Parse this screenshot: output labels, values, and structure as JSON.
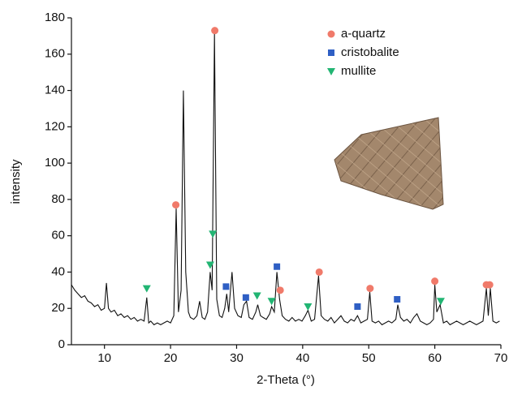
{
  "chart_data": {
    "type": "line",
    "x_label": "2-Theta (°)",
    "y_label": "intensity",
    "xlim": [
      5,
      70
    ],
    "xticks": [
      10,
      20,
      30,
      40,
      50,
      60,
      70
    ],
    "ylim": [
      0,
      180
    ],
    "yticks": [
      0,
      20,
      40,
      60,
      80,
      100,
      120,
      140,
      160,
      180
    ],
    "legend": "upper right",
    "series": [
      {
        "color": "#111111",
        "x": [
          5,
          5.5,
          6,
          6.5,
          7,
          7.5,
          8,
          8.5,
          9,
          9.5,
          10,
          10.3,
          10.6,
          11,
          11.5,
          12,
          12.5,
          13,
          13.5,
          14,
          14.5,
          15,
          15.5,
          16,
          16.4,
          16.7,
          17,
          17.5,
          18,
          18.5,
          19,
          19.5,
          20,
          20.5,
          20.85,
          21.2,
          21.6,
          21.95,
          22.3,
          22.7,
          23,
          23.5,
          24,
          24.4,
          24.8,
          25.2,
          25.6,
          26,
          26.3,
          26.65,
          27,
          27.4,
          27.8,
          28.2,
          28.5,
          28.8,
          29.3,
          29.7,
          30.2,
          30.7,
          31.1,
          31.5,
          31.9,
          32.4,
          32.9,
          33.2,
          33.6,
          34,
          34.5,
          35,
          35.3,
          35.7,
          36.1,
          36.5,
          36.9,
          37.4,
          37.9,
          38.4,
          38.9,
          39.4,
          39.9,
          40.4,
          40.8,
          41.3,
          41.8,
          42.4,
          42.8,
          43.3,
          43.8,
          44.3,
          44.8,
          45.3,
          45.8,
          46.3,
          46.8,
          47.3,
          47.8,
          48.3,
          48.8,
          49.3,
          49.8,
          50.15,
          50.5,
          51,
          51.5,
          52,
          52.5,
          53,
          53.5,
          54.1,
          54.4,
          54.8,
          55.3,
          55.8,
          56.3,
          56.8,
          57.3,
          57.8,
          58.3,
          58.8,
          59.3,
          59.8,
          60,
          60.3,
          60.8,
          61.3,
          61.8,
          62.3,
          62.8,
          63.3,
          63.8,
          64.3,
          64.8,
          65.3,
          65.8,
          66.3,
          66.8,
          67.3,
          67.8,
          68.1,
          68.4,
          68.8,
          69.3,
          69.8
        ],
        "values": [
          33,
          30,
          28,
          26,
          27,
          24,
          23,
          21,
          22,
          19,
          20,
          34,
          20,
          18,
          19,
          16,
          17,
          15,
          16,
          14,
          15,
          13,
          14,
          13,
          26,
          12,
          13,
          11,
          12,
          11,
          12,
          13,
          12,
          16,
          75,
          18,
          30,
          140,
          40,
          18,
          15,
          14,
          16,
          24,
          15,
          14,
          18,
          40,
          30,
          172,
          25,
          16,
          15,
          20,
          28,
          18,
          40,
          20,
          16,
          15,
          22,
          24,
          15,
          14,
          18,
          22,
          16,
          15,
          14,
          17,
          21,
          18,
          40,
          25,
          16,
          14,
          13,
          15,
          13,
          14,
          13,
          16,
          19,
          13,
          14,
          38,
          16,
          14,
          13,
          15,
          12,
          14,
          16,
          13,
          12,
          14,
          13,
          16,
          12,
          13,
          14,
          29,
          13,
          12,
          13,
          11,
          12,
          13,
          12,
          14,
          22,
          15,
          13,
          14,
          12,
          15,
          17,
          13,
          12,
          11,
          12,
          14,
          33,
          18,
          22,
          12,
          13,
          11,
          12,
          13,
          12,
          11,
          12,
          13,
          12,
          11,
          12,
          13,
          31,
          16,
          31,
          13,
          12,
          13
        ]
      },
      {
        "type": "scatter",
        "name": "a-quartz",
        "color": "#f07a6a",
        "marker": "circle",
        "x": [
          20.8,
          26.7,
          36.6,
          42.5,
          50.2,
          60.0,
          67.8,
          68.3
        ],
        "values": [
          77,
          173,
          30,
          40,
          31,
          35,
          33,
          33
        ]
      },
      {
        "type": "scatter",
        "name": "cristobalite",
        "color": "#2f5fc4",
        "marker": "square",
        "x": [
          28.4,
          31.4,
          36.1,
          48.3,
          54.3
        ],
        "values": [
          32,
          26,
          43,
          21,
          25
        ]
      },
      {
        "type": "scatter",
        "name": "mullite",
        "color": "#22b573",
        "marker": "triangle",
        "x": [
          16.4,
          26.0,
          26.4,
          33.1,
          35.3,
          40.8,
          60.9
        ],
        "values": [
          31,
          44,
          61,
          27,
          24,
          21,
          24
        ]
      }
    ]
  }
}
